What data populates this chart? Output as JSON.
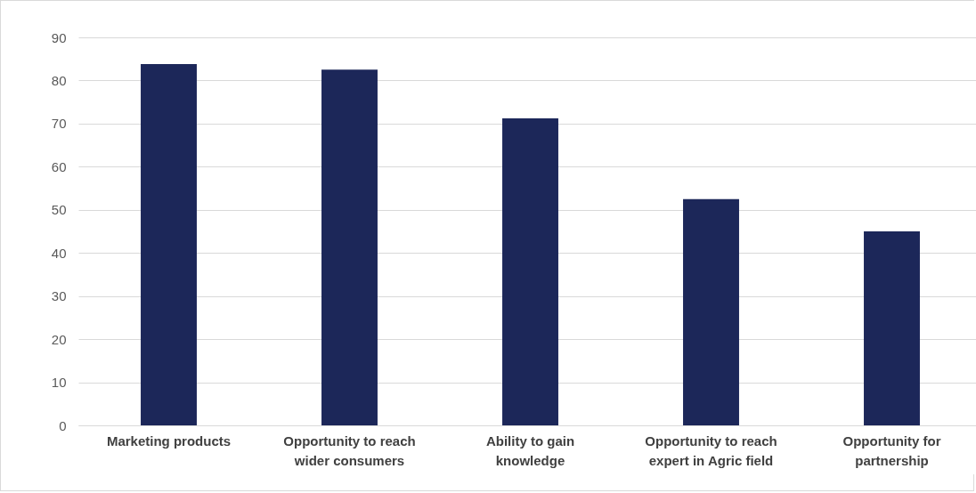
{
  "chart_data": {
    "type": "bar",
    "categories": [
      "Marketing products",
      "Opportunity to reach wider consumers",
      "Ability to gain knowledge",
      "Opportunity to reach expert in Agric field",
      "Opportunity for partnership"
    ],
    "values": [
      83.8,
      82.5,
      71.2,
      52.5,
      45
    ],
    "color": "#1c2759",
    "ylim": [
      0,
      90
    ],
    "yticks": [
      0,
      10,
      20,
      30,
      40,
      50,
      60,
      70,
      80,
      90
    ],
    "grid": "y"
  }
}
